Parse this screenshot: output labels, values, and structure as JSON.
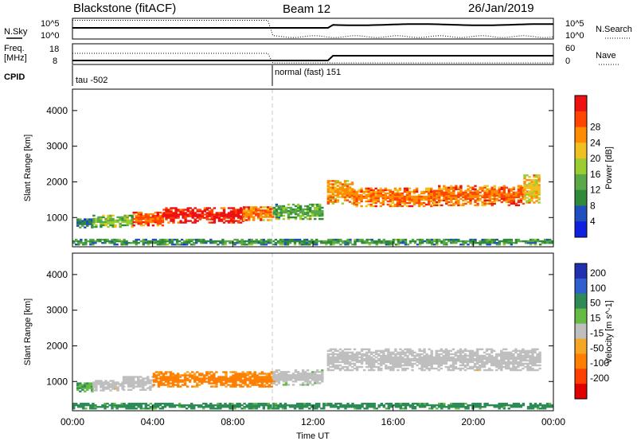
{
  "header": {
    "radar_title": "Blackstone (fitACF)",
    "beam": "Beam 12",
    "date": "26/Jan/2019"
  },
  "summary_panel": {
    "left_label_top": "N.Sky",
    "left_ticks_top": [
      "10^5",
      "10^0"
    ],
    "right_label_top": "N.Search",
    "right_ticks_top": [
      "10^5",
      "10^0"
    ],
    "left_label_freq_1": "Freq.",
    "left_label_freq_2": "[MHz]",
    "left_ticks_freq": [
      "18",
      "8"
    ],
    "right_label_nave": "Nave",
    "right_ticks_nave": [
      "60",
      "0"
    ],
    "cpid_label": "CPID",
    "cpid_segments": [
      "tau -502",
      "normal (fast) 151"
    ]
  },
  "colors": {
    "power_scale": [
      "#1020e0",
      "#2050c0",
      "#2f8a3a",
      "#5aa848",
      "#9acd32",
      "#f0c020",
      "#ff8c00",
      "#ff4500",
      "#ee1111"
    ],
    "velocity_scale": [
      "#2030b0",
      "#3060d0",
      "#2e8b57",
      "#66bb44",
      "#bfbfbf",
      "#f5a623",
      "#ff7f00",
      "#ff4000",
      "#e00000"
    ]
  },
  "chart_data": [
    {
      "type": "heatmap",
      "title": "",
      "quantity": "Power",
      "ylabel": "Slant Range [km]",
      "ylim": [
        180,
        4600
      ],
      "yticks": [
        "1000",
        "2000",
        "3000",
        "4000"
      ],
      "xlim": [
        0,
        24
      ],
      "colorbar": {
        "label": "Power [dB]",
        "ticks": [
          "4",
          "8",
          "12",
          "16",
          "20",
          "24",
          "28"
        ],
        "range": [
          0,
          32
        ]
      },
      "echo_regions": [
        {
          "t_start": 0.2,
          "t_end": 1.0,
          "range_center": 820,
          "range_width": 230,
          "power": 8
        },
        {
          "t_start": 1.0,
          "t_end": 3.0,
          "range_center": 880,
          "range_width": 320,
          "power": 14
        },
        {
          "t_start": 3.0,
          "t_end": 4.5,
          "range_center": 950,
          "range_width": 380,
          "power": 26
        },
        {
          "t_start": 4.5,
          "t_end": 8.5,
          "range_center": 1050,
          "range_width": 420,
          "power": 30
        },
        {
          "t_start": 8.5,
          "t_end": 10.0,
          "range_center": 1100,
          "range_width": 380,
          "power": 24
        },
        {
          "t_start": 10.0,
          "t_end": 12.5,
          "range_center": 1150,
          "range_width": 420,
          "power": 12
        },
        {
          "t_start": 12.7,
          "t_end": 14.0,
          "range_center": 1700,
          "range_width": 650,
          "power": 22
        },
        {
          "t_start": 14.0,
          "t_end": 18.0,
          "range_center": 1550,
          "range_width": 500,
          "power": 24
        },
        {
          "t_start": 18.0,
          "t_end": 22.5,
          "range_center": 1600,
          "range_width": 550,
          "power": 25
        },
        {
          "t_start": 22.5,
          "t_end": 23.3,
          "range_center": 1800,
          "range_width": 800,
          "power": 20
        },
        {
          "t_start": 0.0,
          "t_end": 24.0,
          "range_center": 300,
          "range_width": 150,
          "power": 10
        }
      ]
    },
    {
      "type": "heatmap",
      "title": "",
      "quantity": "Velocity",
      "ylabel": "Slant Range [km]",
      "xlabel": "Time UT",
      "ylim": [
        180,
        4600
      ],
      "yticks": [
        "1000",
        "2000",
        "3000",
        "4000"
      ],
      "xlim": [
        0,
        24
      ],
      "xticks": [
        "00:00",
        "04:00",
        "08:00",
        "12:00",
        "16:00",
        "20:00",
        "00:00"
      ],
      "colorbar": {
        "label": "Velocity [m s^-1]",
        "ticks": [
          "200",
          "100",
          "50",
          "15",
          "-15",
          "-50",
          "-100",
          "-200"
        ]
      },
      "echo_regions": [
        {
          "t_start": 0.2,
          "t_end": 1.0,
          "range_center": 820,
          "range_width": 230,
          "velocity": 30
        },
        {
          "t_start": 1.0,
          "t_end": 2.5,
          "range_center": 880,
          "range_width": 300,
          "velocity": -5
        },
        {
          "t_start": 2.5,
          "t_end": 4.0,
          "range_center": 950,
          "range_width": 400,
          "velocity": 0
        },
        {
          "t_start": 4.0,
          "t_end": 10.0,
          "range_center": 1050,
          "range_width": 420,
          "velocity": -40
        },
        {
          "t_start": 10.0,
          "t_end": 12.5,
          "range_center": 1100,
          "range_width": 420,
          "velocity": 5
        },
        {
          "t_start": 12.7,
          "t_end": 23.3,
          "range_center": 1600,
          "range_width": 600,
          "velocity": 0
        },
        {
          "t_start": 0.0,
          "t_end": 24.0,
          "range_center": 300,
          "range_width": 150,
          "velocity": 40
        }
      ]
    }
  ]
}
